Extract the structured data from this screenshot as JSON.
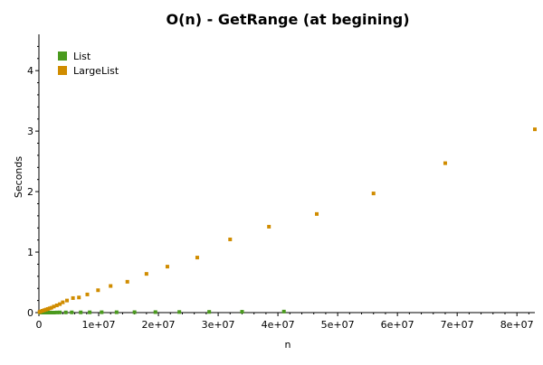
{
  "chart_data": {
    "type": "scatter",
    "title": "O(n) - GetRange (at begining)",
    "xlabel": "n",
    "ylabel": "Seconds",
    "xlim": [
      0,
      83000000
    ],
    "ylim": [
      0,
      4.6
    ],
    "grid": false,
    "legend_position": "top-left",
    "x_ticks": [
      {
        "value": 0,
        "label": "0"
      },
      {
        "value": 10000000,
        "label": "1e+07"
      },
      {
        "value": 20000000,
        "label": "2e+07"
      },
      {
        "value": 30000000,
        "label": "3e+07"
      },
      {
        "value": 40000000,
        "label": "4e+07"
      },
      {
        "value": 50000000,
        "label": "5e+07"
      },
      {
        "value": 60000000,
        "label": "6e+07"
      },
      {
        "value": 70000000,
        "label": "7e+07"
      },
      {
        "value": 80000000,
        "label": "8e+07"
      }
    ],
    "y_ticks": [
      {
        "value": 0,
        "label": "0"
      },
      {
        "value": 1,
        "label": "1"
      },
      {
        "value": 2,
        "label": "2"
      },
      {
        "value": 3,
        "label": "3"
      },
      {
        "value": 4,
        "label": "4"
      }
    ],
    "series": [
      {
        "name": "List",
        "color": "#4a9a1e",
        "x": [
          200000,
          500000,
          1000000,
          1500000,
          2000000,
          2500000,
          3000000,
          3500000,
          4500000,
          5500000,
          7000000,
          8500000,
          10500000,
          13000000,
          16000000,
          19500000,
          23500000,
          28500000,
          34000000,
          41000000
        ],
        "y": [
          0,
          0,
          0,
          0,
          0,
          0,
          0.002,
          0.003,
          0.003,
          0.004,
          0.004,
          0.005,
          0.006,
          0.006,
          0.007,
          0.008,
          0.01,
          0.012,
          0.014,
          0.017
        ]
      },
      {
        "name": "LargeList",
        "color": "#d08c00",
        "x": [
          100000,
          300000,
          600000,
          900000,
          1200000,
          1500000,
          1800000,
          2100000,
          2500000,
          3000000,
          3500000,
          4000000,
          4700000,
          5700000,
          6700000,
          8100000,
          9900000,
          12000000,
          14800000,
          18000000,
          21500000,
          26500000,
          32000000,
          38500000,
          46500000,
          56000000,
          68000000,
          83000000
        ],
        "y": [
          0.01,
          0.02,
          0.03,
          0.04,
          0.05,
          0.06,
          0.07,
          0.08,
          0.1,
          0.12,
          0.14,
          0.17,
          0.2,
          0.24,
          0.25,
          0.3,
          0.37,
          0.44,
          0.51,
          0.64,
          0.76,
          0.91,
          1.21,
          1.42,
          1.63,
          1.97,
          2.47,
          3.03
        ]
      }
    ]
  }
}
